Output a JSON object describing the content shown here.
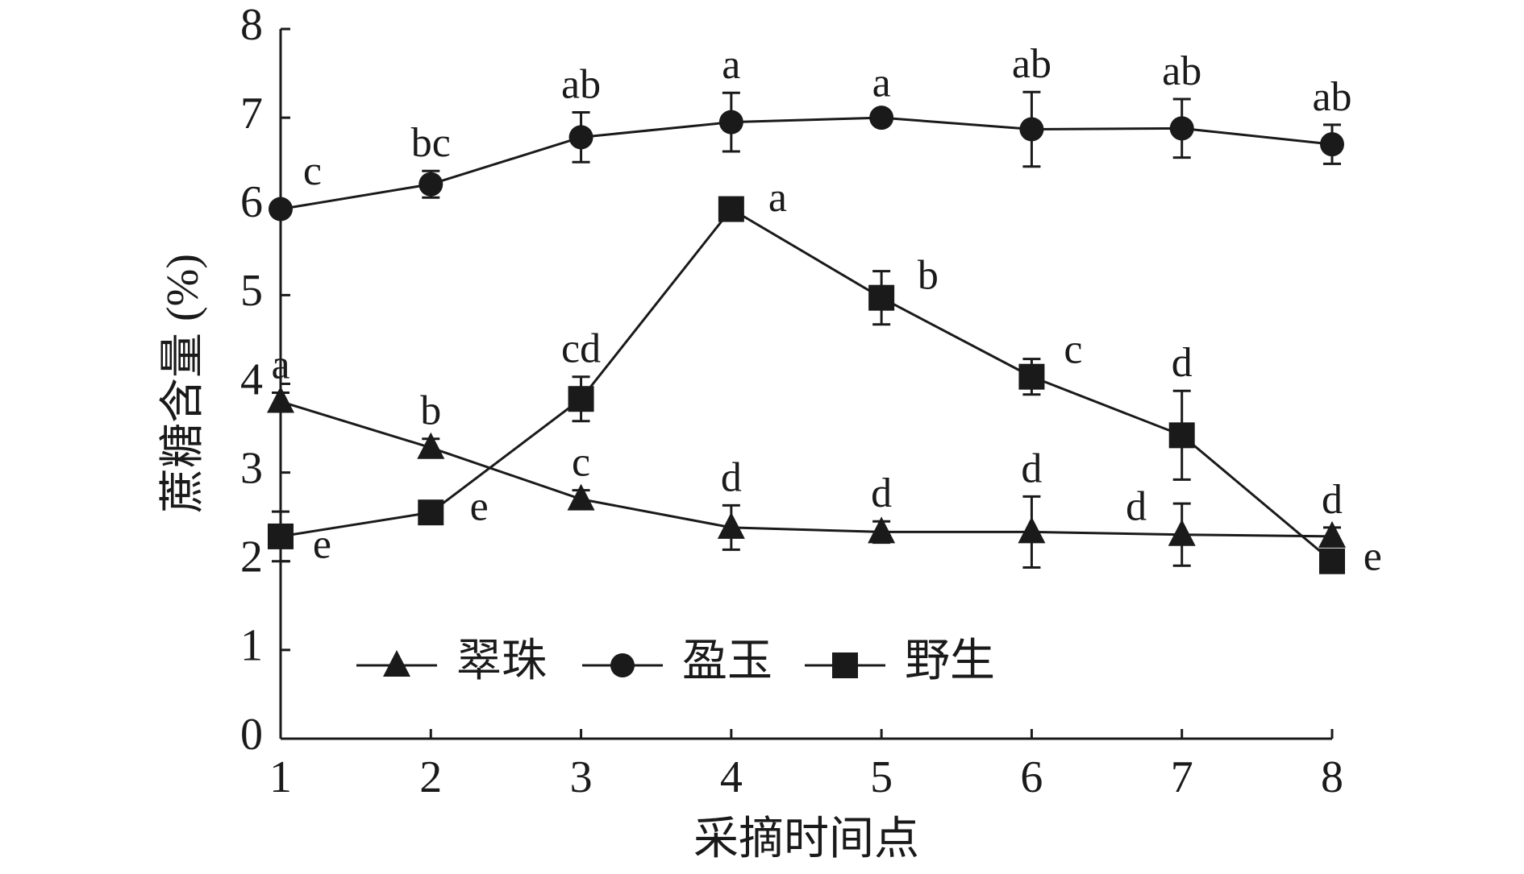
{
  "chart_data": {
    "type": "line",
    "x_label": "采摘时间点",
    "y_label": "蔗糖含量 (%)",
    "x": [
      1,
      2,
      3,
      4,
      5,
      6,
      7,
      8
    ],
    "xlim": [
      1,
      8
    ],
    "xticks": [
      1,
      2,
      3,
      4,
      5,
      6,
      7,
      8
    ],
    "ylim": [
      0,
      8
    ],
    "yticks": [
      0,
      1,
      2,
      3,
      4,
      5,
      6,
      7,
      8
    ],
    "grid": false,
    "legend": "bottom-left",
    "series": [
      {
        "name": "翠珠",
        "color": "#1a1a1a",
        "marker": "triangle",
        "values": [
          3.8,
          3.28,
          2.7,
          2.38,
          2.33,
          2.33,
          2.3,
          2.28
        ],
        "errors": [
          0.1,
          0.1,
          0.1,
          0.25,
          0.12,
          0.4,
          0.35,
          0.1
        ],
        "letters": [
          "a",
          "b",
          "c",
          "d",
          "d",
          "d",
          "d",
          "d"
        ]
      },
      {
        "name": "盈玉",
        "color": "#1a1a1a",
        "marker": "circle",
        "values": [
          5.97,
          6.25,
          6.78,
          6.95,
          7.0,
          6.87,
          6.88,
          6.7
        ],
        "errors": [
          0.05,
          0.15,
          0.28,
          0.33,
          0.08,
          0.42,
          0.33,
          0.22
        ],
        "letters": [
          "c",
          "bc",
          "ab",
          "a",
          "a",
          "ab",
          "ab",
          "ab"
        ]
      },
      {
        "name": "野生",
        "color": "#1a1a1a",
        "marker": "square",
        "values": [
          2.28,
          2.55,
          3.83,
          5.97,
          4.97,
          4.08,
          3.42,
          2.0
        ],
        "errors": [
          0.28,
          0.05,
          0.25,
          0.05,
          0.3,
          0.2,
          0.5,
          0.1
        ],
        "letters": [
          "e",
          "e",
          "cd",
          "a",
          "b",
          "c",
          "d",
          "e"
        ]
      }
    ]
  }
}
